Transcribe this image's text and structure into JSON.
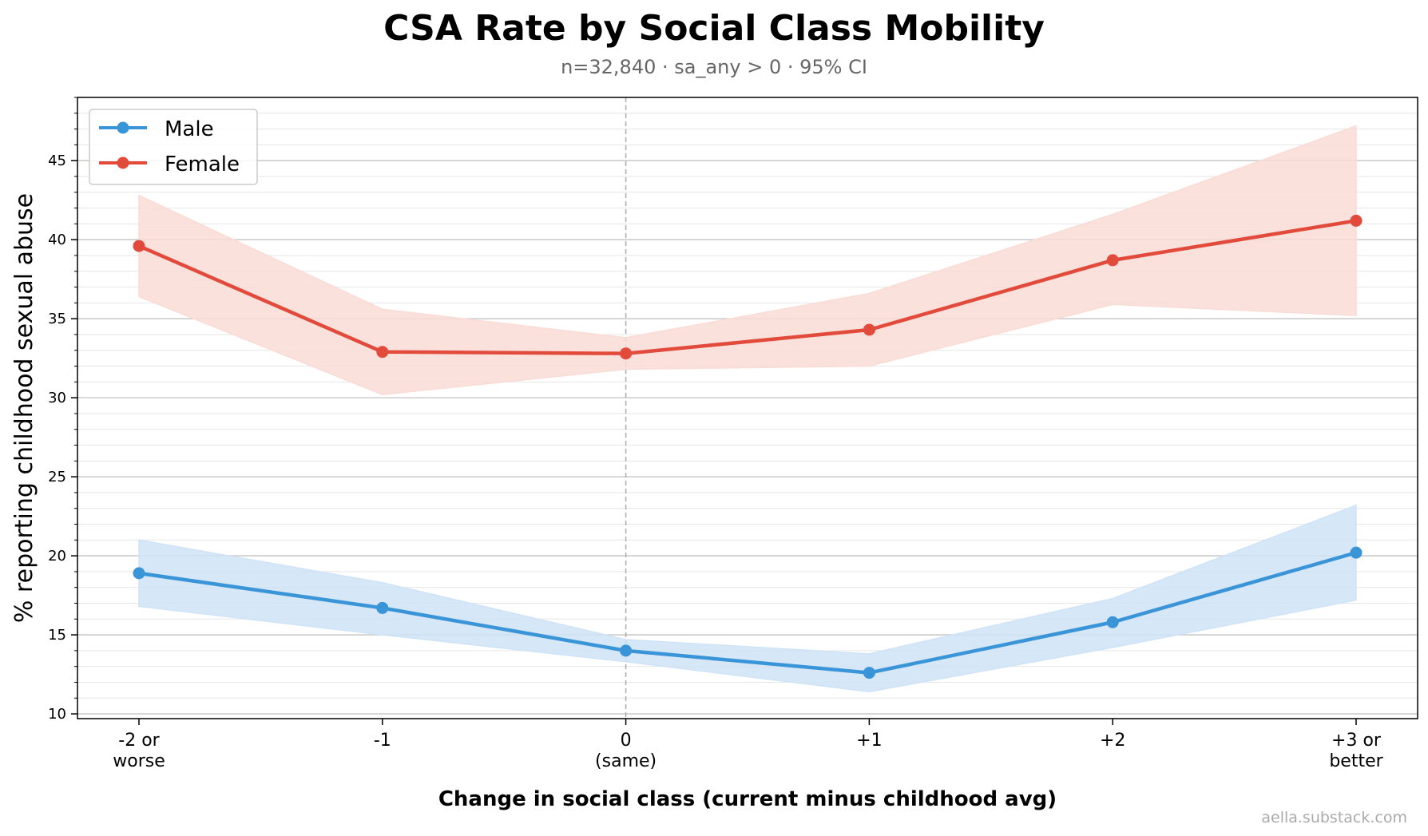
{
  "chart_data": {
    "type": "line",
    "title": "CSA Rate by Social Class Mobility",
    "subtitle": "n=32,840 · sa_any > 0 · 95% CI",
    "xlabel": "Change in social class (current minus childhood avg)",
    "ylabel": "% reporting childhood sexual abuse",
    "categories": [
      [
        "-2 or",
        "worse"
      ],
      [
        "-1"
      ],
      [
        "0",
        "(same)"
      ],
      [
        "+1"
      ],
      [
        "+2"
      ],
      [
        "+3 or",
        "better"
      ]
    ],
    "ylim": [
      9.7,
      49
    ],
    "yticks": [
      10,
      15,
      20,
      25,
      30,
      35,
      40,
      45
    ],
    "reference_line_at_category": 2,
    "legend_position": "upper-left",
    "series": [
      {
        "name": "Male",
        "color": "#3a95d8",
        "band_color": "#cfe3f7",
        "values": [
          18.9,
          16.7,
          14.0,
          12.6,
          15.8,
          20.2
        ],
        "ci_low": [
          16.8,
          15.0,
          13.3,
          11.4,
          14.2,
          17.2
        ],
        "ci_high": [
          21.0,
          18.3,
          14.7,
          13.8,
          17.3,
          23.2
        ]
      },
      {
        "name": "Female",
        "color": "#e24a3c",
        "band_color": "#fadcd6",
        "values": [
          39.6,
          32.9,
          32.8,
          34.3,
          38.7,
          41.2
        ],
        "ci_low": [
          36.4,
          30.2,
          31.8,
          32.0,
          35.9,
          35.2
        ],
        "ci_high": [
          42.8,
          35.6,
          33.8,
          36.6,
          41.6,
          47.2
        ]
      }
    ],
    "watermark": "aella.substack.com"
  }
}
